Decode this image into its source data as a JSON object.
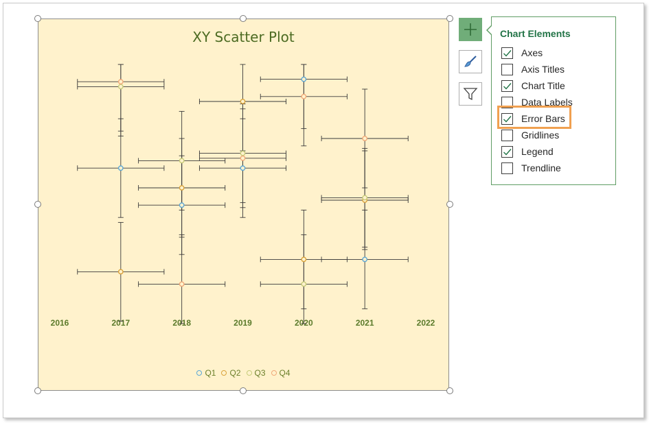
{
  "chart_data": {
    "type": "scatter",
    "title": "XY Scatter Plot",
    "xlim": [
      2016,
      2022
    ],
    "ylim": [
      0,
      100
    ],
    "x_ticks": [
      "2016",
      "2017",
      "2018",
      "2019",
      "2020",
      "2021",
      "2022"
    ],
    "error_bars": true,
    "legend_position": "bottom",
    "series": [
      {
        "name": "Q1",
        "color": "#5aa7d8",
        "points": [
          [
            2017,
            58
          ],
          [
            2018,
            43
          ],
          [
            2019,
            58
          ],
          [
            2020,
            94
          ],
          [
            2021,
            21
          ]
        ]
      },
      {
        "name": "Q2",
        "color": "#d9a23a",
        "points": [
          [
            2017,
            16
          ],
          [
            2018,
            50
          ],
          [
            2019,
            85
          ],
          [
            2020,
            21
          ],
          [
            2021,
            45
          ]
        ]
      },
      {
        "name": "Q3",
        "color": "#c6cc7a",
        "points": [
          [
            2017,
            91
          ],
          [
            2018,
            61
          ],
          [
            2019,
            64
          ],
          [
            2020,
            11
          ],
          [
            2021,
            46
          ]
        ]
      },
      {
        "name": "Q4",
        "color": "#f0a878",
        "points": [
          [
            2017,
            93
          ],
          [
            2018,
            11
          ],
          [
            2019,
            62
          ],
          [
            2020,
            87
          ],
          [
            2021,
            70
          ]
        ]
      }
    ]
  },
  "panel": {
    "title": "Chart Elements",
    "options": [
      {
        "label": "Axes",
        "checked": true
      },
      {
        "label": "Axis Titles",
        "checked": false
      },
      {
        "label": "Chart Title",
        "checked": true
      },
      {
        "label": "Data Labels",
        "checked": false
      },
      {
        "label": "Error Bars",
        "checked": true
      },
      {
        "label": "Gridlines",
        "checked": false
      },
      {
        "label": "Legend",
        "checked": true
      },
      {
        "label": "Trendline",
        "checked": false
      }
    ]
  },
  "side_buttons": [
    {
      "name": "chart-elements-button",
      "icon": "plus-icon"
    },
    {
      "name": "chart-styles-button",
      "icon": "brush-icon"
    },
    {
      "name": "chart-filters-button",
      "icon": "funnel-icon"
    }
  ],
  "colors": {
    "chart_bg": "#fff2cc",
    "accent": "#217346",
    "highlight": "#f0a050"
  }
}
